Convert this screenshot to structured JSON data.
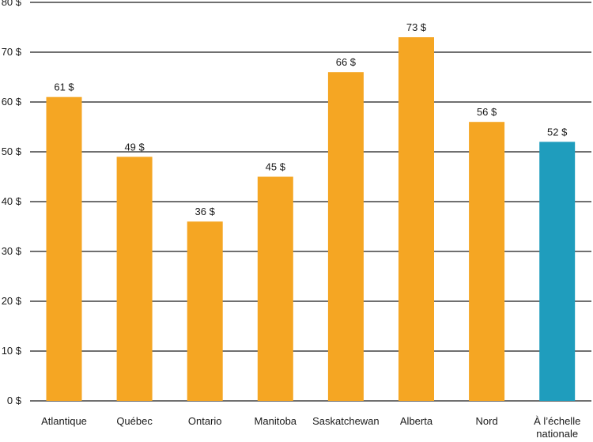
{
  "chart_data": {
    "type": "bar",
    "categories": [
      "Atlantique",
      "Québec",
      "Ontario",
      "Manitoba",
      "Saskatchewan",
      "Alberta",
      "Nord",
      "À l'échelle nationale"
    ],
    "category_lines": [
      [
        "Atlantique"
      ],
      [
        "Québec"
      ],
      [
        "Ontario"
      ],
      [
        "Manitoba"
      ],
      [
        "Saskatchewan"
      ],
      [
        "Alberta"
      ],
      [
        "Nord"
      ],
      [
        "À l’échelle",
        "nationale"
      ]
    ],
    "values": [
      61,
      49,
      36,
      45,
      66,
      73,
      56,
      52
    ],
    "value_labels": [
      "61 $",
      "49 $",
      "36 $",
      "45 $",
      "66 $",
      "73 $",
      "56 $",
      "52 $"
    ],
    "y_ticks": [
      0,
      10,
      20,
      30,
      40,
      50,
      60,
      70,
      80
    ],
    "y_tick_labels": [
      "0 $",
      "10 $",
      "20 $",
      "30 $",
      "40 $",
      "50 $",
      "60 $",
      "70 $",
      "80 $"
    ],
    "ylim": [
      0,
      80
    ],
    "title": "",
    "xlabel": "",
    "ylabel": "",
    "grid": true,
    "legend": "none",
    "colors": {
      "default": "#f5a623",
      "highlight": "#1f9dbd",
      "highlight_category": "À l'échelle nationale",
      "grid": "#1a1a1a",
      "text": "#1a1a1a"
    }
  }
}
